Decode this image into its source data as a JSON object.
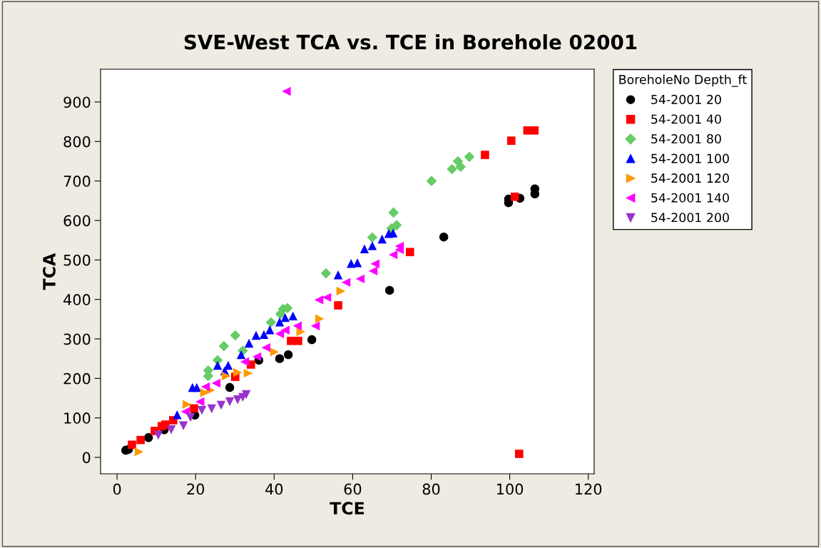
{
  "chart_data": {
    "type": "scatter",
    "title": "SVE-West TCA vs. TCE in Borehole 02001",
    "xlabel": "TCE",
    "ylabel": "TCA",
    "xlim": [
      -4.2,
      121.5
    ],
    "ylim": [
      -41.6,
      983
    ],
    "xticks": [
      0,
      20,
      40,
      60,
      80,
      100,
      120
    ],
    "yticks": [
      0,
      100,
      200,
      300,
      400,
      500,
      600,
      700,
      800,
      900
    ],
    "grid": false,
    "legend": "right",
    "legend_title": "BoreholeNo Depth_ft",
    "series": [
      {
        "name": "54-2001 20",
        "color": "#000000",
        "marker": "circle",
        "x": [
          2.2,
          2.9,
          8,
          12,
          19.8,
          28.7,
          36.1,
          41.4,
          43.6,
          49.6,
          69.4,
          83.2,
          99.7,
          99.7,
          102.6,
          106.4,
          106.4
        ],
        "values": [
          18,
          20,
          50,
          70,
          107,
          177,
          246,
          250,
          260,
          298,
          423,
          558,
          645,
          654,
          656,
          680,
          667
        ]
      },
      {
        "name": "54-2001 40",
        "color": "#ff0000",
        "marker": "square",
        "x": [
          3.8,
          6,
          9.6,
          11.4,
          12.3,
          14.3,
          19.6,
          30.1,
          34.1,
          44.3,
          46.1,
          56.3,
          74.6,
          93.7,
          100.4,
          104.5,
          106.3,
          101.3,
          102.4
        ],
        "values": [
          32,
          44,
          67,
          79,
          83,
          94,
          124,
          204,
          235,
          295,
          295,
          385,
          520,
          766,
          802,
          828,
          828,
          660,
          9
        ]
      },
      {
        "name": "54-2001 80",
        "color": "#66cc66",
        "marker": "diamond",
        "x": [
          23.2,
          23.2,
          25.6,
          27.2,
          30.1,
          32,
          39.2,
          41.6,
          42.3,
          43.4,
          53.2,
          65,
          69.9,
          70.4,
          71.2,
          80.1,
          85.3,
          86.8,
          87.5,
          89.7
        ],
        "values": [
          206,
          220,
          246,
          282,
          309,
          270,
          342,
          363,
          376,
          378,
          466,
          557,
          580,
          620,
          588,
          700,
          730,
          750,
          736,
          761
        ]
      },
      {
        "name": "54-2001 100",
        "color": "#0000ff",
        "marker": "triangle",
        "x": [
          15.3,
          19.2,
          20.3,
          25.6,
          27.4,
          28.3,
          31.6,
          33.6,
          35.4,
          37.4,
          38.9,
          41.4,
          42.8,
          44.8,
          56.3,
          59.6,
          61.2,
          63,
          65,
          67.5,
          69.2,
          70.3
        ],
        "values": [
          108,
          177,
          177,
          233,
          219,
          233,
          260,
          289,
          309,
          311,
          323,
          343,
          354,
          358,
          462,
          491,
          493,
          528,
          536,
          553,
          567,
          568
        ]
      },
      {
        "name": "54-2001 120",
        "color": "#ff9900",
        "marker": "triangle-right",
        "x": [
          5.6,
          17.8,
          22.3,
          23.8,
          27.8,
          30.7,
          33.4,
          40.1,
          46.8,
          51.6,
          57
        ],
        "values": [
          14,
          134,
          164,
          170,
          206,
          215,
          213,
          267,
          318,
          351,
          421
        ]
      },
      {
        "name": "54-2001 140",
        "color": "#ff00ff",
        "marker": "triangle-left",
        "x": [
          17.4,
          21.1,
          22.5,
          25.2,
          32.5,
          35.6,
          37.9,
          41.4,
          42.8,
          43.1,
          45.9,
          50.5,
          51.4,
          53.4,
          58.3,
          61.9,
          65.2,
          65.7,
          70.3,
          71.9,
          71.9
        ],
        "values": [
          116,
          141,
          179,
          188,
          242,
          255,
          278,
          313,
          322,
          927,
          333,
          333,
          399,
          405,
          443,
          452,
          472,
          490,
          513,
          526,
          535
        ]
      },
      {
        "name": "54-2001 200",
        "color": "#9933cc",
        "marker": "triangle-down",
        "x": [
          10.5,
          13.8,
          16.9,
          18.7,
          21.6,
          24.1,
          26.5,
          28.7,
          30.7,
          32,
          32.9
        ],
        "values": [
          56,
          70,
          80,
          101,
          119,
          123,
          132,
          141,
          146,
          152,
          159
        ]
      }
    ]
  }
}
